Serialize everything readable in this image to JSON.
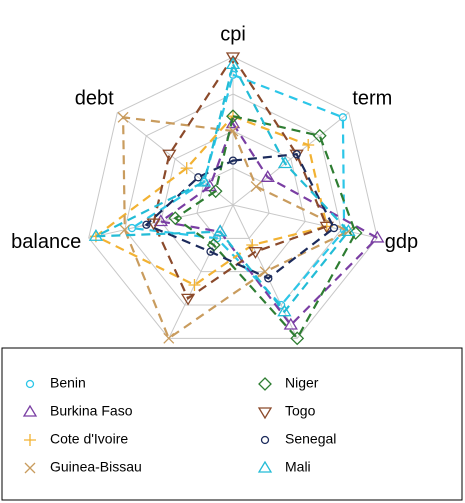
{
  "chart_data": {
    "type": "radar",
    "categories": [
      "cpi",
      "term",
      "gdp",
      null,
      null,
      "balance",
      "debt"
    ],
    "rlim": [
      0,
      1
    ],
    "rticks": [
      0.25,
      0.5,
      0.75,
      1
    ],
    "grid": true,
    "series": [
      {
        "name": "Benin",
        "color": "#2cc6e8",
        "marker": "circle",
        "values": [
          0.88,
          0.95,
          0.77,
          0.75,
          0.25,
          0.7,
          0.25
        ]
      },
      {
        "name": "Burkina Faso",
        "color": "#7a3ea3",
        "marker": "triangle",
        "values": [
          0.55,
          0.3,
          1.0,
          0.9,
          0.2,
          0.5,
          0.2
        ]
      },
      {
        "name": "Cote d'Ivoire",
        "color": "#f2b233",
        "marker": "plus",
        "values": [
          0.6,
          0.65,
          0.65,
          0.3,
          0.6,
          0.95,
          0.4
        ]
      },
      {
        "name": "Guinea-Bissau",
        "color": "#c99c5e",
        "marker": "cross",
        "values": [
          0.5,
          0.2,
          0.8,
          0.5,
          1.0,
          0.75,
          0.95
        ]
      },
      {
        "name": "Niger",
        "color": "#2e7d32",
        "marker": "diamond",
        "values": [
          0.6,
          0.75,
          0.85,
          1.0,
          0.3,
          0.4,
          0.15
        ]
      },
      {
        "name": "Togo",
        "color": "#8b4a2b",
        "marker": "triangle-down",
        "values": [
          1.0,
          0.55,
          0.65,
          0.35,
          0.7,
          0.55,
          0.55
        ]
      },
      {
        "name": "Senegal",
        "color": "#1c2b5c",
        "marker": "circle",
        "values": [
          0.3,
          0.55,
          0.7,
          0.55,
          0.35,
          0.6,
          0.3
        ]
      },
      {
        "name": "Mali",
        "color": "#23bcd6",
        "marker": "triangle",
        "values": [
          0.95,
          0.45,
          0.8,
          0.8,
          0.2,
          0.95,
          0.25
        ]
      }
    ]
  }
}
